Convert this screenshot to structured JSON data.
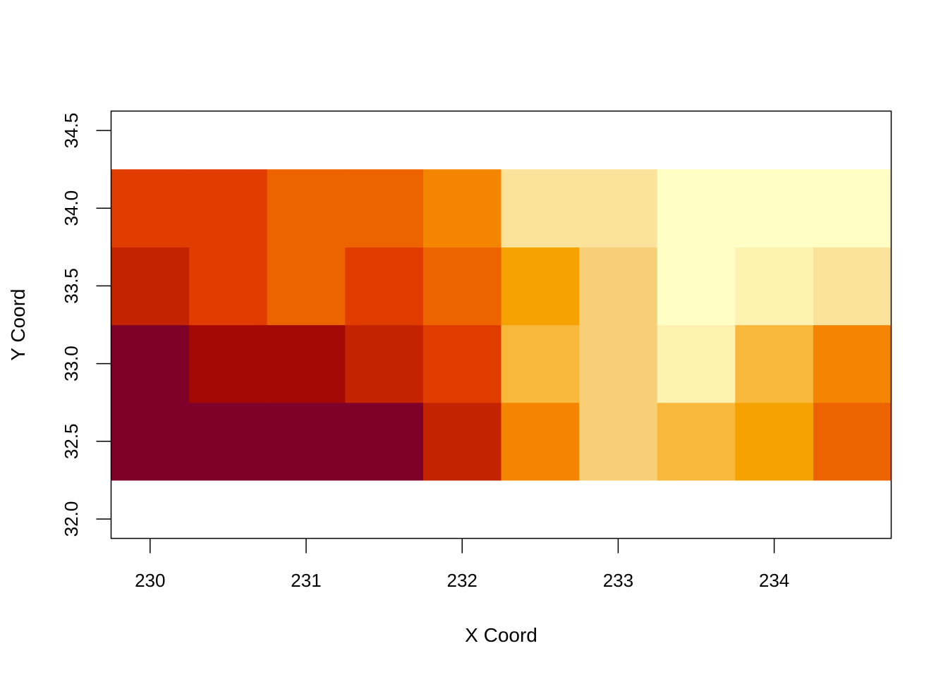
{
  "chart_data": {
    "type": "heatmap",
    "title": "",
    "xlabel": "X Coord",
    "ylabel": "Y Coord",
    "xlim": [
      229.75,
      234.75
    ],
    "ylim": [
      31.875,
      34.625
    ],
    "x": [
      230.0,
      230.5,
      231.0,
      231.5,
      232.0,
      232.5,
      233.0,
      233.5,
      234.0,
      234.5
    ],
    "y": [
      32.5,
      33.0,
      33.5,
      34.0
    ],
    "cell_width": 0.5,
    "cell_height": 0.5,
    "x_ticks": [
      230,
      231,
      232,
      233,
      234
    ],
    "y_ticks": [
      32.0,
      32.5,
      33.0,
      33.5,
      34.0,
      34.5
    ],
    "x_tick_labels": [
      "230",
      "231",
      "232",
      "233",
      "234"
    ],
    "y_tick_labels": [
      "32.0",
      "32.5",
      "33.0",
      "33.5",
      "34.0",
      "34.5"
    ],
    "color_scale": "heat (dark red = low, pale yellow = high)",
    "palette": [
      "#7F0028",
      "#A30804",
      "#C42300",
      "#E03C00",
      "#EC6300",
      "#F38500",
      "#F5A200",
      "#F7B83C",
      "#F7CF76",
      "#FBE29B",
      "#FFF2B1",
      "#FFFEC4"
    ],
    "levels": [
      [
        0,
        0,
        0,
        0,
        2,
        5,
        8,
        7,
        6,
        4
      ],
      [
        0,
        1,
        1,
        2,
        3,
        7,
        8,
        10,
        7,
        5
      ],
      [
        2,
        3,
        4,
        3,
        4,
        6,
        8,
        11,
        10,
        9
      ],
      [
        3,
        3,
        4,
        4,
        5,
        9,
        9,
        11,
        11,
        11
      ]
    ]
  }
}
